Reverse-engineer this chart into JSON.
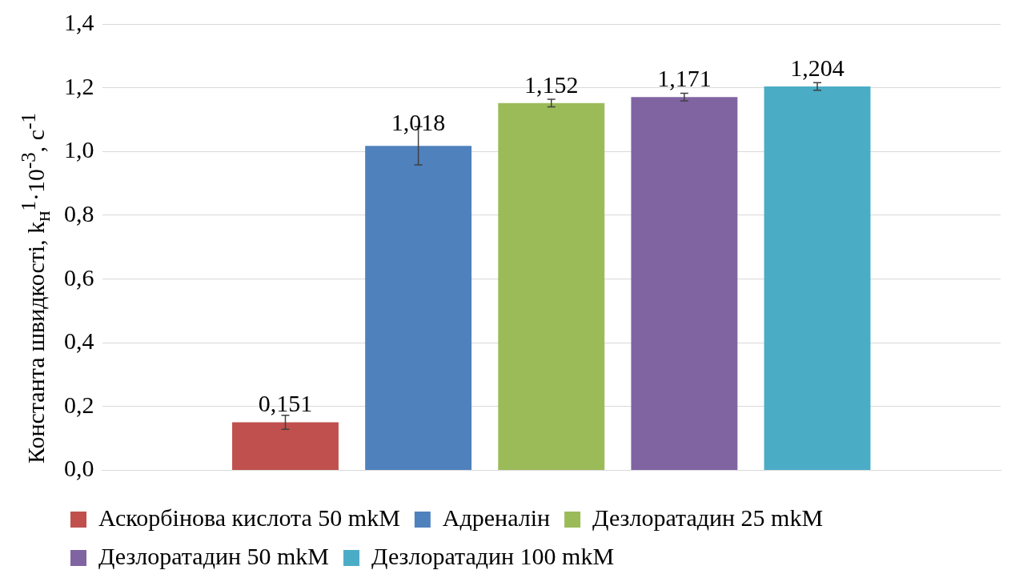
{
  "chart_data": {
    "type": "bar",
    "ylabel": "Константа швидкості, k$_{н}$$^{1}$·10$^{-3}$, с$^{-1}$",
    "categories": [
      null
    ],
    "series": [
      {
        "name": "Аскорбінова кислота 50 mkM",
        "color": "#c0504d",
        "values": [
          0.151
        ],
        "errors": [
          0.022
        ],
        "value_labels": [
          "0,151"
        ]
      },
      {
        "name": "Адреналін",
        "color": "#4f81bd",
        "values": [
          1.018
        ],
        "errors": [
          0.06
        ],
        "value_labels": [
          "1,018"
        ]
      },
      {
        "name": "Дезлоратадин 25 mkM",
        "color": "#9bbb59",
        "values": [
          1.152
        ],
        "errors": [
          0.012
        ],
        "value_labels": [
          "1,152"
        ]
      },
      {
        "name": "Дезлоратадин 50 mkM",
        "color": "#8064a2",
        "values": [
          1.171
        ],
        "errors": [
          0.012
        ],
        "value_labels": [
          "1,171"
        ]
      },
      {
        "name": "Дезлоратадин 100 mkM",
        "color": "#4bacc6",
        "values": [
          1.204
        ],
        "errors": [
          0.012
        ],
        "value_labels": [
          "1,204"
        ]
      }
    ],
    "ylim": [
      0,
      1.4
    ],
    "yticks": [
      {
        "value": 0,
        "label": "0,0"
      },
      {
        "value": 0.2,
        "label": "0,2"
      },
      {
        "value": 0.4,
        "label": "0,4"
      },
      {
        "value": 0.6,
        "label": "0,6"
      },
      {
        "value": 0.8,
        "label": "0,8"
      },
      {
        "value": 1,
        "label": "1,0"
      },
      {
        "value": 1.2,
        "label": "1,2"
      },
      {
        "value": 1.4,
        "label": "1,4"
      }
    ],
    "grid": "y",
    "legend": "bottom"
  }
}
